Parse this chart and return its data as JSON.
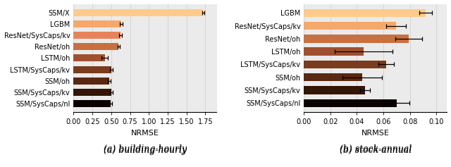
{
  "left": {
    "labels": [
      "SSM/X",
      "LGBM",
      "ResNet/SysCaps/kv",
      "ResNet/oh",
      "LSTM/oh",
      "LSTM/SysCaps/kv",
      "SSM/oh",
      "SSM/SysCaps/kv",
      "SSM/SysCaps/nl"
    ],
    "values": [
      1.72,
      0.635,
      0.625,
      0.6,
      0.415,
      0.5,
      0.475,
      0.5,
      0.49
    ],
    "errors": [
      0.015,
      0.018,
      0.018,
      0.018,
      0.04,
      0.018,
      0.018,
      0.018,
      0.018
    ],
    "colors": [
      "#FFCB8A",
      "#F5A86A",
      "#E8825A",
      "#C87040",
      "#A05030",
      "#7B3C1E",
      "#5A2810",
      "#351505",
      "#0A0200"
    ],
    "xlabel": "NRMSE",
    "xlim": [
      0.0,
      1.9
    ],
    "xticks": [
      0.0,
      0.25,
      0.5,
      0.75,
      1.0,
      1.25,
      1.5,
      1.75
    ],
    "xticklabels": [
      "0.00",
      "0.25",
      "0.50",
      "0.75",
      "1.00",
      "1.25",
      "1.50",
      "1.75"
    ],
    "caption": "(a) building-hourly"
  },
  "right": {
    "labels": [
      "LGBM",
      "ResNet/SysCaps/kv",
      "ResNet/oh",
      "LSTM/oh",
      "LSTM/SysCaps/kv",
      "SSM/oh",
      "SSM/SysCaps/kv",
      "SSM/SysCaps/nl"
    ],
    "values": [
      0.092,
      0.0695,
      0.079,
      0.045,
      0.062,
      0.044,
      0.046,
      0.07
    ],
    "errors": [
      0.0048,
      0.0072,
      0.01,
      0.022,
      0.006,
      0.015,
      0.0038,
      0.0095
    ],
    "colors": [
      "#FFCB8A",
      "#F5A86A",
      "#C87040",
      "#A05030",
      "#7B3C1E",
      "#5A2810",
      "#351505",
      "#0A0200"
    ],
    "xlabel": "NRMSE",
    "xlim": [
      0.0,
      0.108
    ],
    "xticks": [
      0.0,
      0.02,
      0.04,
      0.06,
      0.08,
      0.1
    ],
    "xticklabels": [
      "0.00",
      "0.02",
      "0.04",
      "0.06",
      "0.08",
      "0.10"
    ],
    "caption": "(b) stock-annual"
  },
  "figsize": [
    6.4,
    2.37
  ],
  "dpi": 100,
  "bar_height": 0.62,
  "grid_color": "#d0d0d0",
  "bg_color": "#ebebeb",
  "caption_fontsize": 9.0,
  "tick_fontsize": 7.0,
  "label_fontsize": 8.0
}
